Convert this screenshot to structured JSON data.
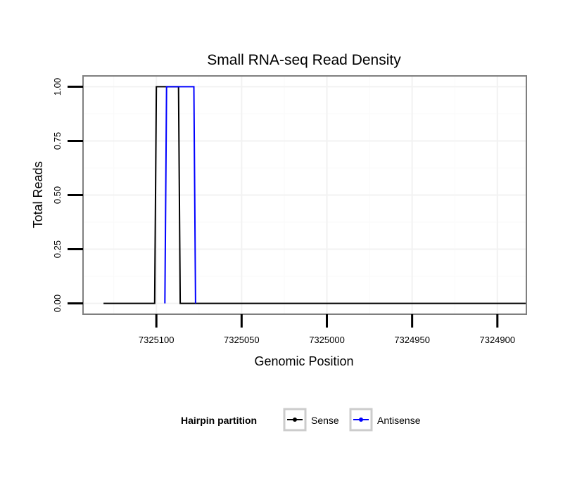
{
  "chart_data": {
    "type": "line",
    "title": "Small RNA-seq Read Density",
    "xlabel": "Genomic Position",
    "ylabel": "Total Reads",
    "xlim": [
      7325143,
      7324883
    ],
    "ylim": [
      -0.05,
      1.05
    ],
    "x_reversed": true,
    "x_ticks": [
      7325100,
      7325050,
      7325000,
      7324950,
      7324900
    ],
    "x_tick_labels": [
      "7325100",
      "7325050",
      "7325000",
      "7324950",
      "7324900"
    ],
    "y_ticks": [
      0,
      0.25,
      0.5,
      0.75,
      1.0
    ],
    "y_tick_labels": [
      "0.00",
      "0.25",
      "0.50",
      "0.75",
      "1.00"
    ],
    "grid": true,
    "legend": {
      "title": "Hairpin partition",
      "position": "bottom",
      "entries": [
        "Sense",
        "Antisense"
      ]
    },
    "series": [
      {
        "name": "Sense",
        "color": "#000000",
        "x": [
          7325131,
          7325101,
          7325100,
          7325087,
          7325086,
          7324883
        ],
        "y": [
          0,
          0,
          1,
          1,
          0,
          0
        ]
      },
      {
        "name": "Antisense",
        "color": "#0000ff",
        "x": [
          7325095,
          7325094,
          7325078,
          7325077
        ],
        "y": [
          0,
          1,
          1,
          0
        ]
      }
    ]
  }
}
